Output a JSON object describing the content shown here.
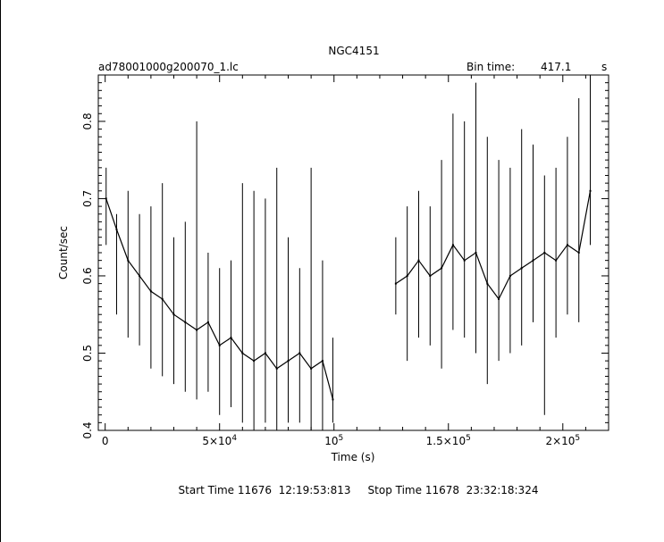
{
  "chart_data": {
    "type": "line",
    "title": "NGC4151",
    "subtitle_left": "ad78001000g200070_1.lc",
    "bin_time_label": "Bin time:",
    "bin_time_value": "417.1",
    "bin_time_unit": "s",
    "xlabel": "Time (s)",
    "ylabel": "Count/sec",
    "xlim": [
      -3000,
      220000
    ],
    "ylim": [
      0.4,
      0.86
    ],
    "x_ticks": [
      {
        "value": 0,
        "label": "0"
      },
      {
        "value": 50000,
        "label": "5×10",
        "exp": "4"
      },
      {
        "value": 100000,
        "label": "10",
        "exp": "5"
      },
      {
        "value": 150000,
        "label": "1.5×10",
        "exp": "5"
      },
      {
        "value": 200000,
        "label": "2×10",
        "exp": "5"
      }
    ],
    "y_ticks": [
      {
        "value": 0.4,
        "label": "0.4"
      },
      {
        "value": 0.5,
        "label": "0.5"
      },
      {
        "value": 0.6,
        "label": "0.6"
      },
      {
        "value": 0.7,
        "label": "0.7"
      },
      {
        "value": 0.8,
        "label": "0.8"
      }
    ],
    "grid": false,
    "footer": "Start Time 11676  12:19:53:813     Stop Time 11678  23:32:18:324",
    "series": [
      {
        "segments": [
          {
            "x": [
              417,
              5000,
              10000,
              15000,
              20000,
              25000,
              30000,
              35000,
              40000,
              45000,
              50000,
              55000,
              60000,
              65000,
              70000,
              75000,
              80000,
              85000,
              90000,
              95000,
              99500
            ],
            "y": [
              0.7,
              0.66,
              0.62,
              0.6,
              0.58,
              0.57,
              0.55,
              0.54,
              0.53,
              0.54,
              0.51,
              0.52,
              0.5,
              0.49,
              0.5,
              0.48,
              0.49,
              0.5,
              0.48,
              0.49,
              0.44
            ],
            "err_low": [
              0.64,
              0.55,
              0.52,
              0.51,
              0.48,
              0.47,
              0.46,
              0.45,
              0.44,
              0.45,
              0.42,
              0.43,
              0.41,
              0.4,
              0.41,
              0.4,
              0.41,
              0.41,
              0.4,
              0.4,
              0.41
            ],
            "err_high": [
              0.74,
              0.68,
              0.71,
              0.68,
              0.69,
              0.72,
              0.65,
              0.67,
              0.8,
              0.63,
              0.61,
              0.62,
              0.72,
              0.71,
              0.7,
              0.74,
              0.65,
              0.61,
              0.74,
              0.62,
              0.52
            ]
          },
          {
            "x": [
              127000,
              132000,
              137000,
              142000,
              147000,
              152000,
              157000,
              162000,
              167000,
              172000,
              177000,
              182000,
              187000,
              192000,
              197000,
              202000,
              207000,
              212000
            ],
            "y": [
              0.59,
              0.6,
              0.62,
              0.6,
              0.61,
              0.64,
              0.62,
              0.63,
              0.59,
              0.57,
              0.6,
              0.61,
              0.62,
              0.63,
              0.62,
              0.64,
              0.63,
              0.71
            ],
            "err_low": [
              0.55,
              0.49,
              0.52,
              0.51,
              0.48,
              0.53,
              0.52,
              0.5,
              0.46,
              0.49,
              0.5,
              0.51,
              0.54,
              0.42,
              0.52,
              0.55,
              0.54,
              0.64
            ],
            "err_high": [
              0.65,
              0.69,
              0.71,
              0.69,
              0.75,
              0.81,
              0.8,
              0.85,
              0.78,
              0.75,
              0.74,
              0.79,
              0.77,
              0.73,
              0.74,
              0.78,
              0.83,
              0.86
            ]
          }
        ]
      }
    ]
  }
}
